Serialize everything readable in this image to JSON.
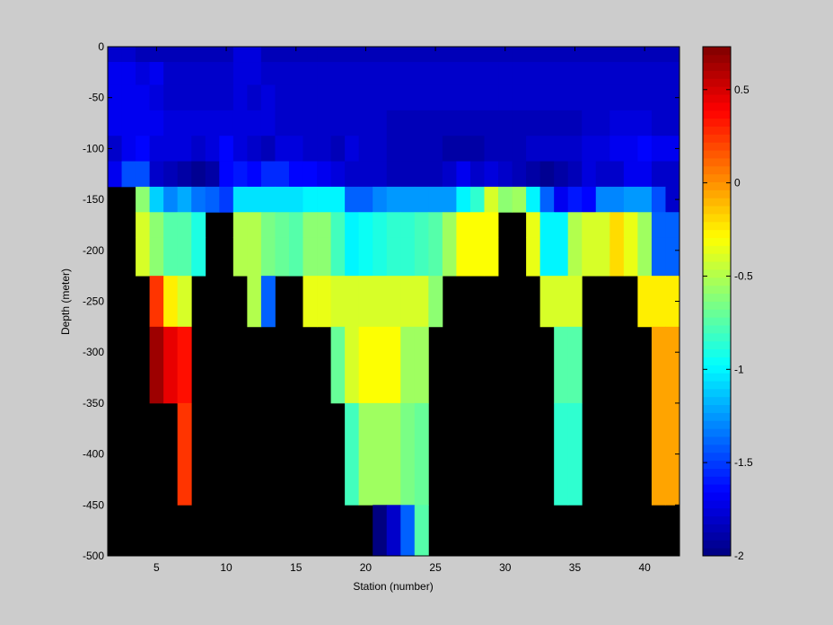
{
  "chart_data": {
    "type": "heatmap",
    "xlabel": "Station (number)",
    "ylabel": "Depth (meter)",
    "xlim": [
      1.5,
      42.5
    ],
    "ylim": [
      -500,
      0
    ],
    "clim": [
      -2.0,
      0.73
    ],
    "colormap": "jet",
    "background": "#000000",
    "x_ticks": [
      5,
      10,
      15,
      20,
      25,
      30,
      35,
      40
    ],
    "y_ticks": [
      0,
      -50,
      -100,
      -150,
      -200,
      -250,
      -300,
      -350,
      -400,
      -450,
      -500
    ],
    "colorbar_ticks": [
      0.5,
      0,
      -0.5,
      -1,
      -1.5,
      -2
    ],
    "x_tick_labels": [
      "5",
      "10",
      "15",
      "20",
      "25",
      "30",
      "35",
      "40"
    ],
    "y_tick_labels": [
      "0",
      "-50",
      "-100",
      "-150",
      "-200",
      "-250",
      "-300",
      "-350",
      "-400",
      "-450",
      "-500"
    ],
    "colorbar_tick_labels": [
      "0.5",
      "0",
      "-0.5",
      "-1",
      "-1.5",
      "-2"
    ],
    "stations": [
      2,
      3,
      4,
      5,
      6,
      7,
      8,
      9,
      10,
      11,
      12,
      13,
      14,
      15,
      16,
      17,
      18,
      19,
      20,
      21,
      22,
      23,
      24,
      25,
      26,
      27,
      28,
      29,
      30,
      31,
      32,
      33,
      34,
      35,
      36,
      37,
      38,
      39,
      40,
      41,
      42
    ],
    "depths": [
      -5,
      -25,
      -50,
      -75,
      -100,
      -125,
      -150,
      -175,
      -200,
      -250,
      -300,
      -400,
      -500
    ],
    "rows": [
      [
        -1.79,
        -1.79,
        -1.85,
        -1.85,
        -1.85,
        -1.85,
        -1.85,
        -1.85,
        -1.85,
        -1.75,
        -1.75,
        -1.85,
        -1.85,
        -1.85,
        -1.85,
        -1.85,
        -1.85,
        -1.85,
        -1.85,
        -1.85,
        -1.85,
        -1.85,
        -1.85,
        -1.85,
        -1.85,
        -1.85,
        -1.85,
        -1.85,
        -1.85,
        -1.85,
        -1.85,
        -1.85,
        -1.85,
        -1.85,
        -1.85,
        -1.85,
        -1.85,
        -1.85,
        -1.85,
        -1.85,
        -1.85
      ],
      [
        -1.7,
        -1.7,
        -1.75,
        -1.7,
        -1.8,
        -1.8,
        -1.8,
        -1.8,
        -1.8,
        -1.75,
        -1.75,
        -1.8,
        -1.8,
        -1.8,
        -1.8,
        -1.8,
        -1.8,
        -1.8,
        -1.8,
        -1.8,
        -1.8,
        -1.8,
        -1.8,
        -1.8,
        -1.8,
        -1.8,
        -1.8,
        -1.8,
        -1.8,
        -1.8,
        -1.8,
        -1.8,
        -1.8,
        -1.8,
        -1.8,
        -1.8,
        -1.8,
        -1.8,
        -1.8,
        -1.8,
        -1.8
      ],
      [
        -1.7,
        -1.7,
        -1.7,
        -1.75,
        -1.8,
        -1.8,
        -1.8,
        -1.8,
        -1.8,
        -1.75,
        -1.8,
        -1.75,
        -1.8,
        -1.8,
        -1.8,
        -1.8,
        -1.8,
        -1.8,
        -1.8,
        -1.8,
        -1.8,
        -1.8,
        -1.8,
        -1.8,
        -1.8,
        -1.8,
        -1.8,
        -1.8,
        -1.8,
        -1.8,
        -1.8,
        -1.8,
        -1.8,
        -1.8,
        -1.8,
        -1.8,
        -1.8,
        -1.8,
        -1.8,
        -1.8,
        -1.8
      ],
      [
        -1.7,
        -1.7,
        -1.7,
        -1.7,
        -1.75,
        -1.75,
        -1.75,
        -1.75,
        -1.75,
        -1.75,
        -1.75,
        -1.75,
        -1.8,
        -1.8,
        -1.8,
        -1.8,
        -1.8,
        -1.8,
        -1.8,
        -1.8,
        -1.85,
        -1.85,
        -1.85,
        -1.85,
        -1.85,
        -1.85,
        -1.85,
        -1.85,
        -1.85,
        -1.85,
        -1.85,
        -1.85,
        -1.85,
        -1.85,
        -1.8,
        -1.8,
        -1.75,
        -1.75,
        -1.75,
        -1.8,
        -1.8
      ],
      [
        -1.8,
        -1.7,
        -1.65,
        -1.75,
        -1.75,
        -1.75,
        -1.8,
        -1.75,
        -1.65,
        -1.75,
        -1.8,
        -1.85,
        -1.75,
        -1.75,
        -1.8,
        -1.8,
        -1.85,
        -1.75,
        -1.8,
        -1.8,
        -1.85,
        -1.85,
        -1.85,
        -1.85,
        -1.9,
        -1.9,
        -1.9,
        -1.85,
        -1.85,
        -1.85,
        -1.8,
        -1.8,
        -1.8,
        -1.8,
        -1.75,
        -1.75,
        -1.7,
        -1.7,
        -1.65,
        -1.7,
        -1.7
      ],
      [
        -1.7,
        -1.45,
        -1.45,
        -1.8,
        -1.85,
        -1.9,
        -1.95,
        -1.9,
        -1.65,
        -1.6,
        -1.65,
        -1.55,
        -1.55,
        -1.65,
        -1.65,
        -1.7,
        -1.75,
        -1.8,
        -1.8,
        -1.8,
        -1.85,
        -1.85,
        -1.85,
        -1.85,
        -1.8,
        -1.7,
        -1.8,
        -1.75,
        -1.8,
        -1.85,
        -1.9,
        -1.95,
        -1.9,
        -1.85,
        -1.75,
        -1.8,
        -1.8,
        -1.7,
        -1.7,
        -1.8,
        -1.8
      ],
      [
        null,
        null,
        -0.6,
        -1.1,
        -1.3,
        -1.2,
        -1.35,
        -1.4,
        -1.5,
        -1.05,
        -1.05,
        -1.05,
        -1.05,
        -1.05,
        -1.0,
        -1.0,
        -1.0,
        -1.4,
        -1.4,
        -1.3,
        -1.25,
        -1.25,
        -1.25,
        -1.25,
        -1.25,
        -1.0,
        -0.85,
        -0.4,
        -0.6,
        -0.55,
        -1.0,
        -1.4,
        -1.7,
        -1.6,
        -1.65,
        -1.3,
        -1.3,
        -1.25,
        -1.25,
        -1.45,
        -1.8
      ],
      [
        null,
        null,
        -0.4,
        -0.6,
        -0.75,
        -0.75,
        -0.9,
        null,
        null,
        -0.5,
        -0.5,
        -0.65,
        -0.7,
        -0.75,
        -0.6,
        -0.6,
        -0.8,
        -1.0,
        -0.95,
        -0.9,
        -0.85,
        -0.85,
        -0.8,
        -0.75,
        -0.55,
        -0.3,
        -0.3,
        -0.3,
        null,
        null,
        -0.35,
        -1.0,
        -1.0,
        -0.5,
        -0.4,
        -0.4,
        -0.2,
        -0.35,
        -0.55,
        -1.4,
        -1.4
      ],
      [
        null,
        null,
        -0.4,
        -0.6,
        -0.75,
        -0.75,
        -0.9,
        null,
        null,
        -0.5,
        -0.5,
        -0.65,
        -0.7,
        -0.75,
        -0.6,
        -0.6,
        -0.8,
        -1.0,
        -0.95,
        -0.9,
        -0.85,
        -0.85,
        -0.8,
        -0.75,
        -0.55,
        -0.3,
        -0.3,
        -0.3,
        null,
        null,
        -0.35,
        -1.0,
        -1.0,
        -0.5,
        -0.4,
        -0.4,
        -0.2,
        -0.35,
        -0.55,
        -1.4,
        -1.4
      ],
      [
        null,
        null,
        null,
        0.25,
        -0.25,
        -0.4,
        null,
        null,
        null,
        null,
        -0.5,
        -1.4,
        null,
        null,
        -0.35,
        -0.35,
        -0.4,
        -0.4,
        -0.4,
        -0.4,
        -0.4,
        -0.4,
        -0.4,
        -0.6,
        null,
        null,
        null,
        null,
        null,
        null,
        null,
        -0.4,
        -0.4,
        -0.4,
        null,
        null,
        null,
        null,
        -0.25,
        -0.25,
        -0.25
      ],
      [
        null,
        null,
        null,
        0.65,
        0.45,
        0.35,
        null,
        null,
        null,
        null,
        null,
        null,
        null,
        null,
        null,
        null,
        -0.7,
        -0.4,
        -0.3,
        -0.3,
        -0.3,
        -0.55,
        -0.55,
        null,
        null,
        null,
        null,
        null,
        null,
        null,
        null,
        null,
        -0.75,
        -0.75,
        null,
        null,
        null,
        null,
        null,
        -0.05,
        -0.05
      ],
      [
        null,
        null,
        null,
        null,
        null,
        0.25,
        null,
        null,
        null,
        null,
        null,
        null,
        null,
        null,
        null,
        null,
        null,
        -0.8,
        -0.55,
        -0.55,
        -0.55,
        -0.65,
        -0.7,
        null,
        null,
        null,
        null,
        null,
        null,
        null,
        null,
        null,
        -0.85,
        -0.85,
        null,
        null,
        null,
        null,
        null,
        -0.05,
        -0.05
      ],
      [
        null,
        null,
        null,
        null,
        null,
        null,
        null,
        null,
        null,
        null,
        null,
        null,
        null,
        null,
        null,
        null,
        null,
        null,
        null,
        -2.0,
        -1.8,
        -1.4,
        -0.75,
        null,
        null,
        null,
        null,
        null,
        null,
        null,
        null,
        null,
        null,
        null,
        null,
        null,
        null,
        null,
        null,
        null,
        null
      ]
    ]
  }
}
